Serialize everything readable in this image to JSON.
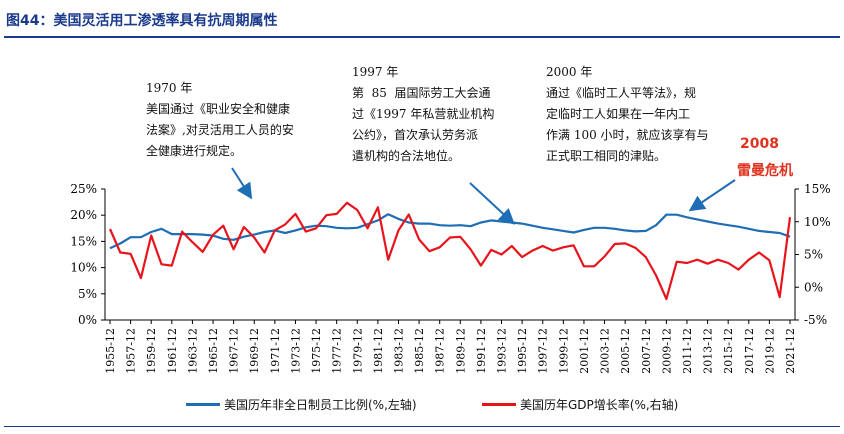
{
  "figure_title": "图44：美国灵活用工渗透率具有抗周期属性",
  "chart_data": {
    "type": "line",
    "x": [
      "1955-12",
      "1956-12",
      "1957-12",
      "1958-12",
      "1959-12",
      "1960-12",
      "1961-12",
      "1962-12",
      "1963-12",
      "1964-12",
      "1965-12",
      "1966-12",
      "1967-12",
      "1968-12",
      "1969-12",
      "1970-12",
      "1971-12",
      "1972-12",
      "1973-12",
      "1974-12",
      "1975-12",
      "1976-12",
      "1977-12",
      "1978-12",
      "1979-12",
      "1980-12",
      "1981-12",
      "1982-12",
      "1983-12",
      "1984-12",
      "1985-12",
      "1986-12",
      "1987-12",
      "1988-12",
      "1989-12",
      "1990-12",
      "1991-12",
      "1992-12",
      "1993-12",
      "1994-12",
      "1995-12",
      "1996-12",
      "1997-12",
      "1998-12",
      "1999-12",
      "2000-12",
      "2001-12",
      "2002-12",
      "2003-12",
      "2004-12",
      "2005-12",
      "2006-12",
      "2007-12",
      "2008-12",
      "2009-12",
      "2010-12",
      "2011-12",
      "2012-12",
      "2013-12",
      "2014-12",
      "2015-12",
      "2016-12",
      "2017-12",
      "2018-12",
      "2019-12",
      "2020-12",
      "2021-12"
    ],
    "x_tick_labels": [
      "1955-12",
      "1957-12",
      "1959-12",
      "1961-12",
      "1963-12",
      "1965-12",
      "1967-12",
      "1969-12",
      "1971-12",
      "1973-12",
      "1975-12",
      "1977-12",
      "1979-12",
      "1981-12",
      "1983-12",
      "1985-12",
      "1987-12",
      "1989-12",
      "1991-12",
      "1993-12",
      "1995-12",
      "1997-12",
      "1999-12",
      "2001-12",
      "2003-12",
      "2005-12",
      "2007-12",
      "2009-12",
      "2011-12",
      "2013-12",
      "2015-12",
      "2017-12",
      "2019-12",
      "2021-12"
    ],
    "y_left_ticks": [
      "0%",
      "5%",
      "10%",
      "15%",
      "20%",
      "25%"
    ],
    "y_left_lim": [
      0,
      25
    ],
    "y_right_ticks": [
      "-5%",
      "0%",
      "5%",
      "10%",
      "15%"
    ],
    "y_right_lim": [
      -5,
      15
    ],
    "grid": false,
    "legend_position": "bottom",
    "series": [
      {
        "name": "美国历年非全日制员工比例(%,左轴)",
        "axis": "left",
        "color": "#1f6db5",
        "values": [
          13.7,
          14.6,
          15.8,
          15.8,
          16.8,
          17.4,
          16.4,
          16.4,
          16.4,
          16.3,
          16.1,
          15.5,
          15.3,
          15.9,
          16.3,
          16.8,
          17.1,
          16.6,
          17.1,
          17.7,
          18.0,
          17.9,
          17.6,
          17.5,
          17.6,
          18.3,
          19.0,
          20.2,
          19.3,
          18.6,
          18.4,
          18.4,
          18.1,
          18.0,
          18.1,
          17.9,
          18.6,
          19.0,
          18.8,
          18.6,
          18.4,
          18.0,
          17.6,
          17.3,
          17.0,
          16.7,
          17.2,
          17.6,
          17.6,
          17.4,
          17.1,
          16.9,
          17.0,
          18.1,
          20.1,
          20.1,
          19.6,
          19.2,
          18.8,
          18.4,
          18.1,
          17.8,
          17.4,
          17.0,
          16.8,
          16.6,
          15.9
        ]
      },
      {
        "name": "美国历年GDP增长率(%,右轴)",
        "axis": "right",
        "color": "#e8141c",
        "values": [
          8.9,
          5.3,
          5.1,
          1.4,
          7.9,
          3.5,
          3.3,
          8.5,
          6.9,
          5.4,
          8.0,
          9.4,
          5.8,
          9.2,
          7.6,
          5.3,
          8.7,
          9.6,
          11.2,
          8.5,
          9.0,
          11.0,
          11.2,
          12.9,
          11.8,
          9.0,
          12.2,
          4.2,
          8.7,
          11.1,
          7.3,
          5.5,
          6.1,
          7.6,
          7.7,
          5.8,
          3.3,
          5.7,
          5.0,
          6.3,
          4.6,
          5.6,
          6.3,
          5.6,
          6.1,
          6.4,
          3.2,
          3.2,
          4.7,
          6.6,
          6.7,
          6.0,
          4.6,
          1.8,
          -1.8,
          3.9,
          3.7,
          4.2,
          3.6,
          4.2,
          3.7,
          2.7,
          4.2,
          5.3,
          4.1,
          -1.5,
          10.7
        ]
      }
    ]
  },
  "annotations": {
    "a1970": "1970 年\n美国通过《职业安全和健康\n法案》,对灵活用工人员的安\n全健康进行规定。",
    "a1997": "1997 年\n第  85  届国际劳工大会通\n过《1997 年私营就业机构\n公约》，首次承认劳务派\n遣机构的合法地位。",
    "a2000": "2000 年\n通过《临时工人平等法》，规\n定临时工人如果在一年内工\n作满 100 小时，就应该享有与\n正式职工相同的津贴。",
    "crisis_year": "2008",
    "crisis_name": "雷曼危机"
  }
}
